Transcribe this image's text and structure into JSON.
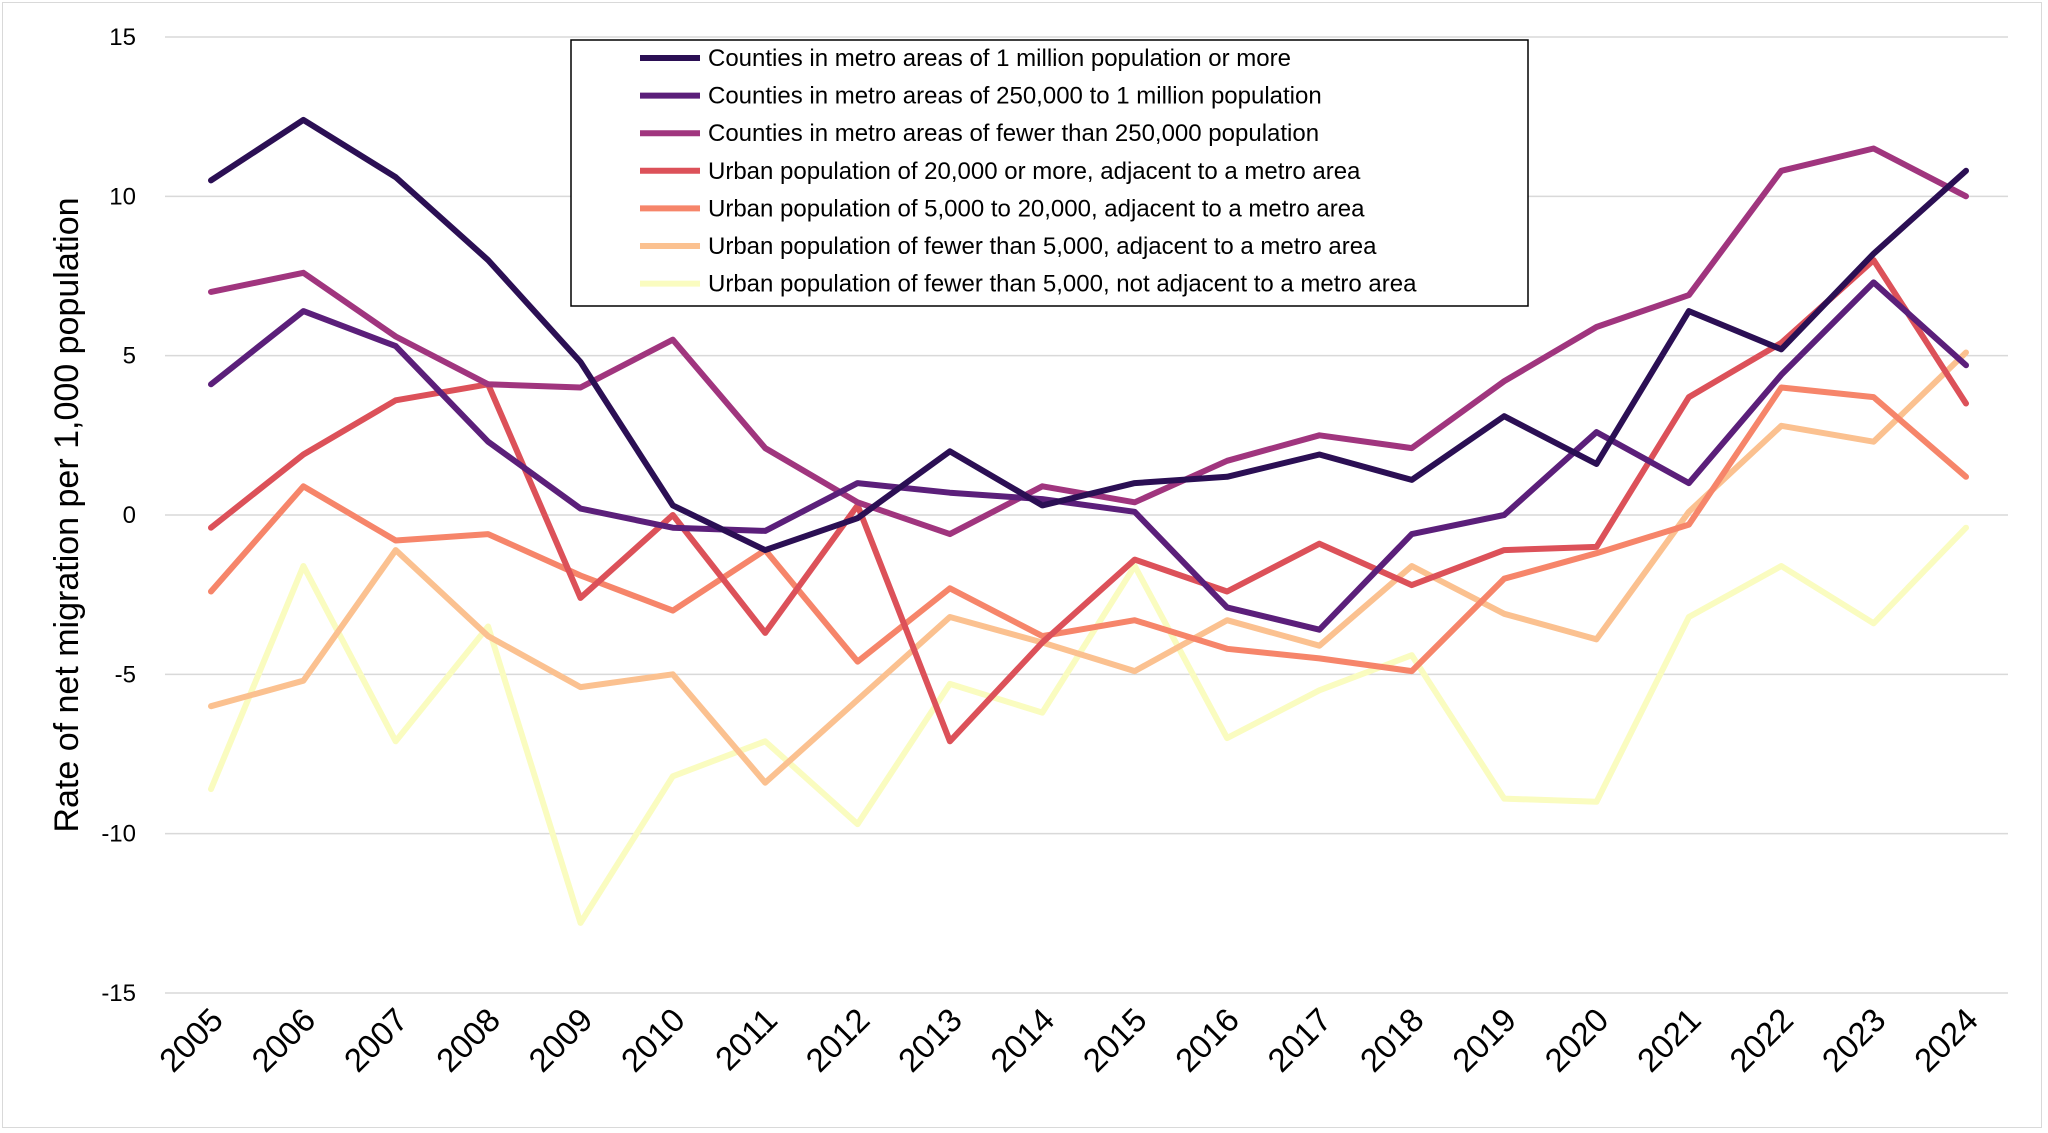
{
  "chart_data": {
    "type": "line",
    "title": "",
    "xlabel": "",
    "ylabel": "Rate of net migration per 1,000 population",
    "ylim": [
      -15,
      15
    ],
    "yticks": [
      15,
      10,
      5,
      0,
      -5,
      -10,
      -15
    ],
    "grid": true,
    "legend_position": "top-center",
    "categories": [
      "2005",
      "2006",
      "2007",
      "2008",
      "2009",
      "2010",
      "2011",
      "2012",
      "2013",
      "2014",
      "2015",
      "2016",
      "2017",
      "2018",
      "2019",
      "2020",
      "2021",
      "2022",
      "2023",
      "2024"
    ],
    "series": [
      {
        "name": "Counties in metro areas of 1 million population or more",
        "color": "#2b0f54",
        "values": [
          10.5,
          12.4,
          10.6,
          8.0,
          4.8,
          0.3,
          -1.1,
          -0.1,
          2.0,
          0.3,
          1.0,
          1.2,
          1.9,
          1.1,
          3.1,
          1.6,
          6.4,
          5.2,
          8.2,
          10.8
        ]
      },
      {
        "name": "Counties in metro areas of 250,000 to 1 million population",
        "color": "#5b1f7a",
        "values": [
          4.1,
          6.4,
          5.3,
          2.3,
          0.2,
          -0.4,
          -0.5,
          1.0,
          0.7,
          0.5,
          0.1,
          -2.9,
          -3.6,
          -0.6,
          0.0,
          2.6,
          1.0,
          4.4,
          7.3,
          4.7
        ]
      },
      {
        "name": "Counties in metro areas of fewer than 250,000 population",
        "color": "#a0357e",
        "values": [
          7.0,
          7.6,
          5.6,
          4.1,
          4.0,
          5.5,
          2.1,
          0.4,
          -0.6,
          0.9,
          0.4,
          1.7,
          2.5,
          2.1,
          4.2,
          5.9,
          6.9,
          10.8,
          11.5,
          10.0
        ]
      },
      {
        "name": "Urban population of 20,000 or more, adjacent to a metro area",
        "color": "#dc5159",
        "values": [
          -0.4,
          1.9,
          3.6,
          4.1,
          -2.6,
          0.0,
          -3.7,
          0.3,
          -7.1,
          -4.0,
          -1.4,
          -2.4,
          -0.9,
          -2.2,
          -1.1,
          -1.0,
          3.7,
          5.4,
          8.0,
          3.5
        ]
      },
      {
        "name": "Urban population of 5,000 to 20,000, adjacent to a metro area",
        "color": "#f6856a",
        "values": [
          -2.4,
          0.9,
          -0.8,
          -0.6,
          -1.9,
          -3.0,
          -1.1,
          -4.6,
          -2.3,
          -3.8,
          -3.3,
          -4.2,
          -4.5,
          -4.9,
          -2.0,
          -1.2,
          -0.3,
          4.0,
          3.7,
          1.2
        ]
      },
      {
        "name": "Urban population of fewer than 5,000, adjacent to a metro area",
        "color": "#fbc190",
        "values": [
          -6.0,
          -5.2,
          -1.1,
          -3.8,
          -5.4,
          -5.0,
          -8.4,
          -5.8,
          -3.2,
          -4.0,
          -4.9,
          -3.3,
          -4.1,
          -1.6,
          -3.1,
          -3.9,
          0.1,
          2.8,
          2.3,
          5.1
        ]
      },
      {
        "name": "Urban population of fewer than 5,000, not adjacent to a metro area",
        "color": "#fafcc0",
        "values": [
          -8.6,
          -1.6,
          -7.1,
          -3.5,
          -12.8,
          -8.2,
          -7.1,
          -9.7,
          -5.3,
          -6.2,
          -1.6,
          -7.0,
          -5.5,
          -4.4,
          -8.9,
          -9.0,
          -3.2,
          -1.6,
          -3.4,
          -0.4
        ]
      }
    ]
  }
}
